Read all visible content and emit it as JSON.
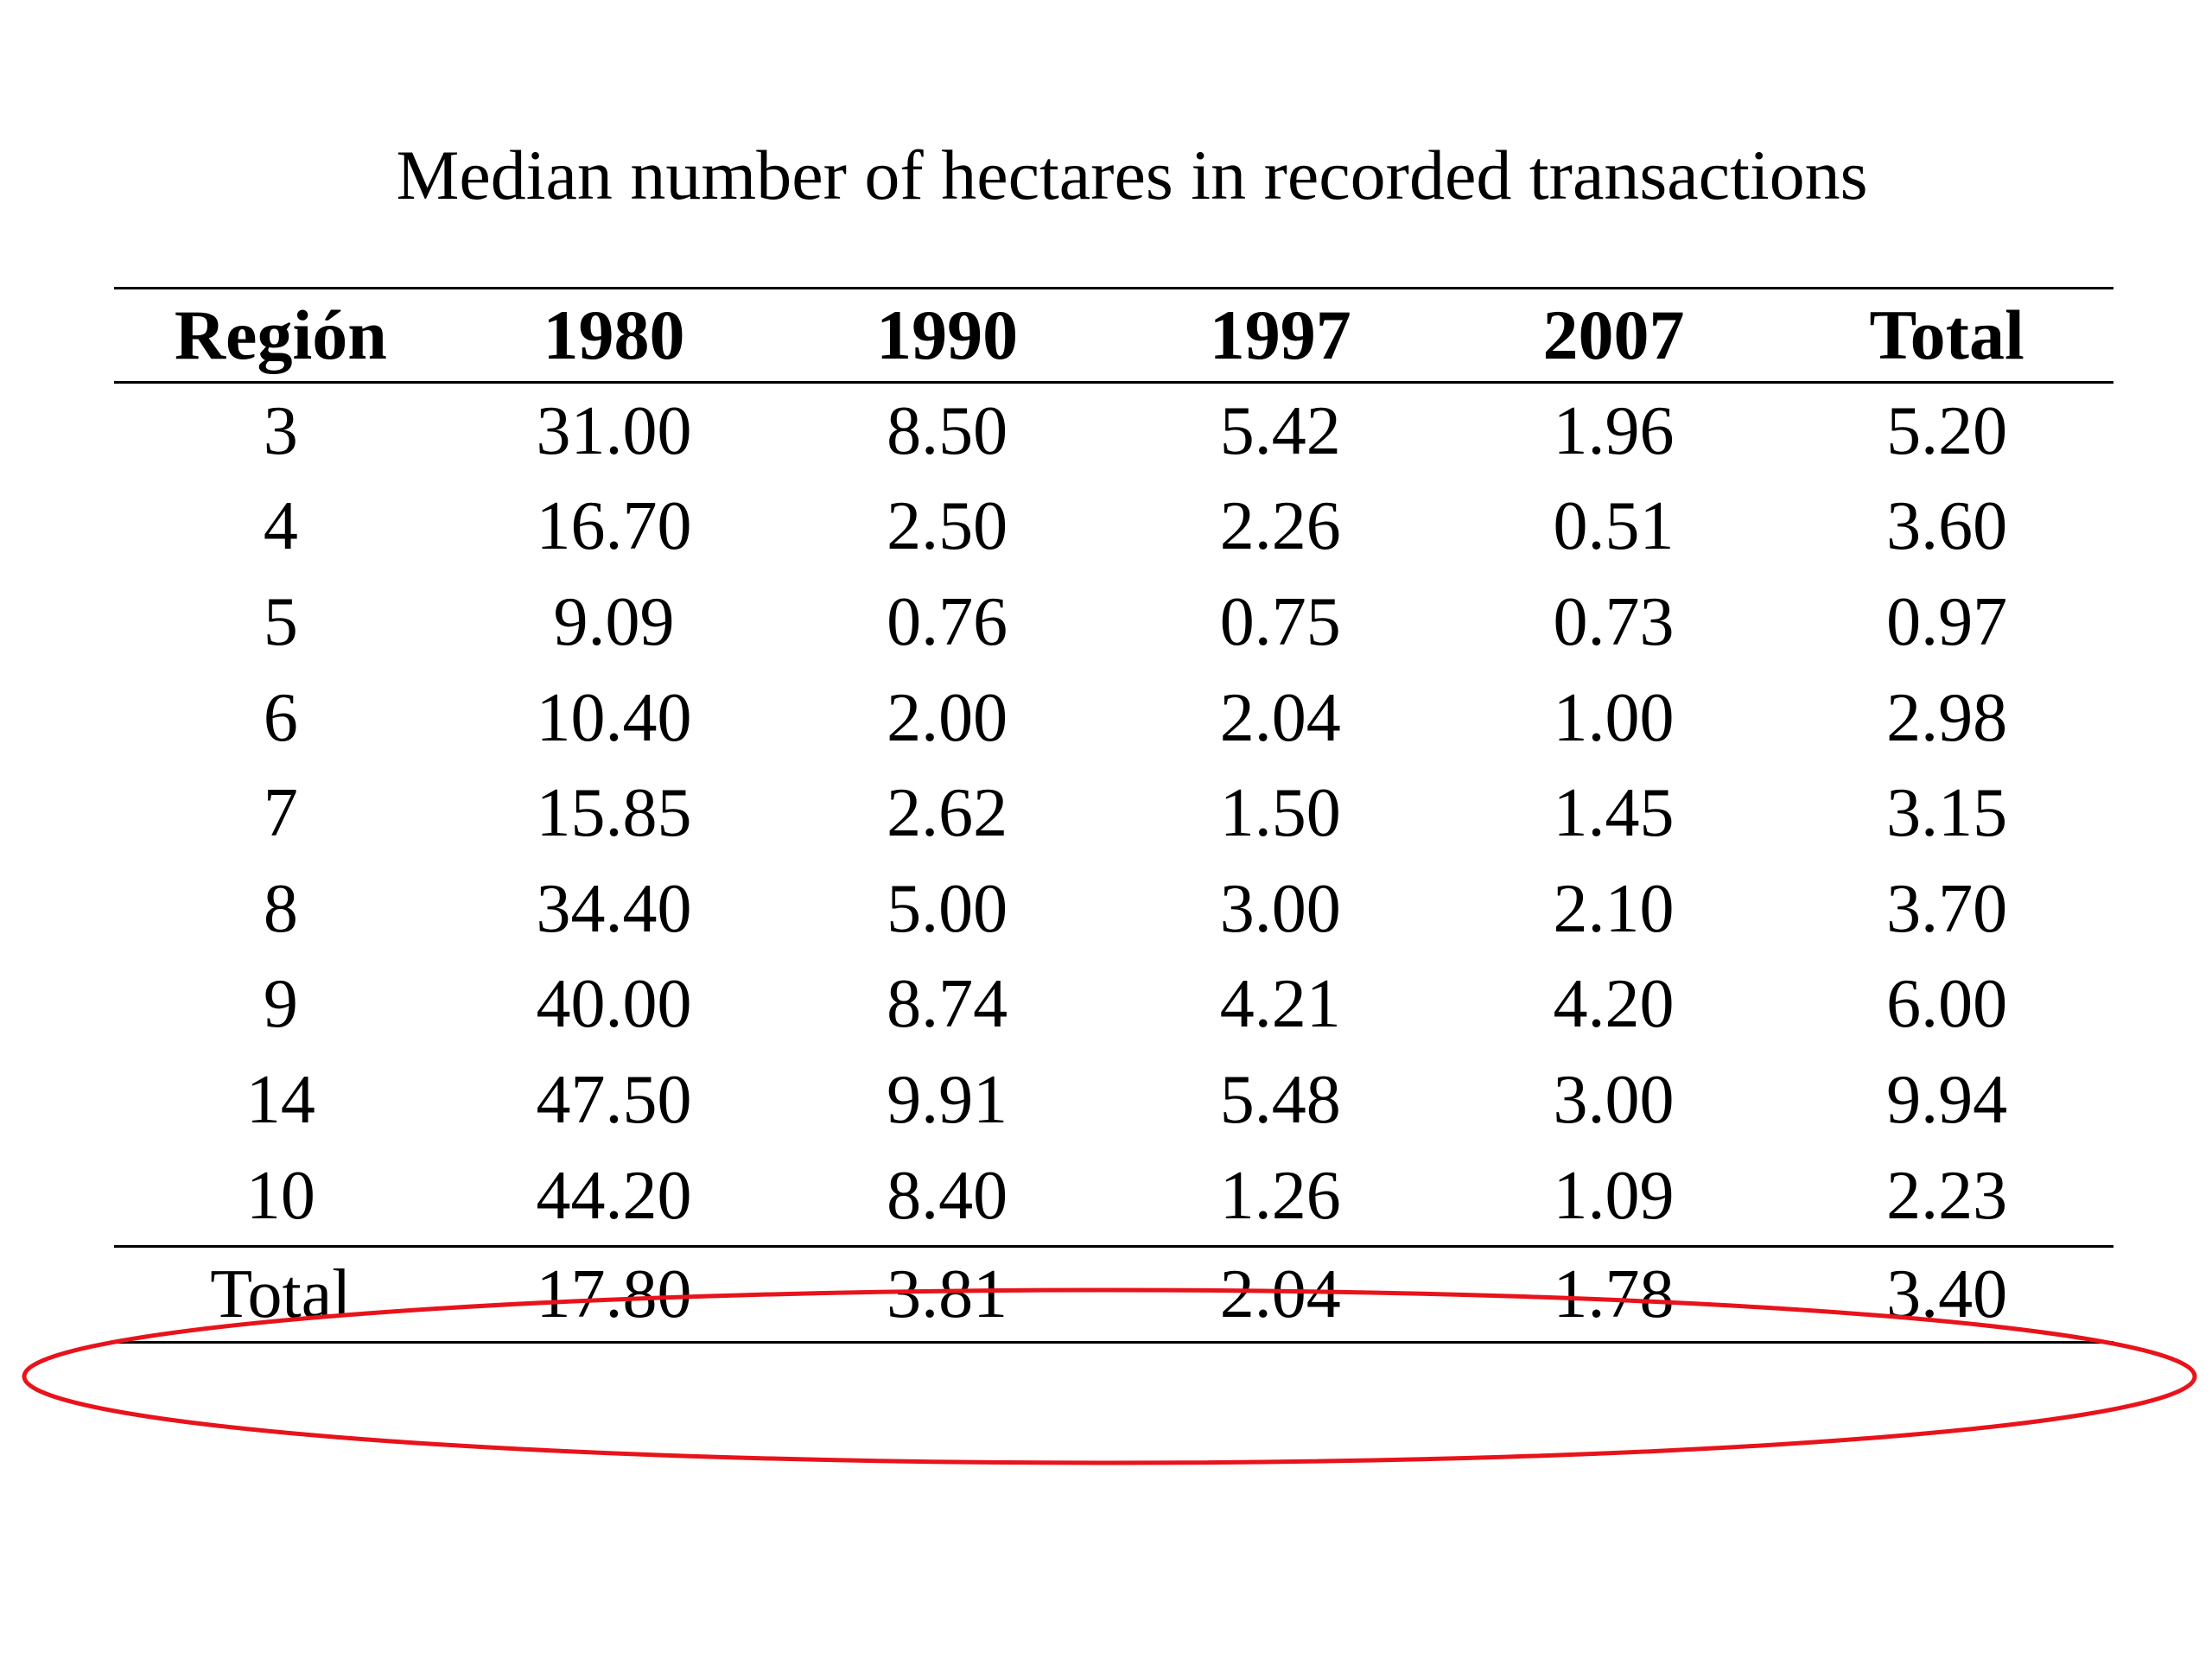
{
  "title": "Median number of hectares in recorded transactions",
  "table": {
    "headers": [
      "Región",
      "1980",
      "1990",
      "1997",
      "2007",
      "Total"
    ],
    "rows": [
      [
        "3",
        "31.00",
        "8.50",
        "5.42",
        "1.96",
        "5.20"
      ],
      [
        "4",
        "16.70",
        "2.50",
        "2.26",
        "0.51",
        "3.60"
      ],
      [
        "5",
        "9.09",
        "0.76",
        "0.75",
        "0.73",
        "0.97"
      ],
      [
        "6",
        "10.40",
        "2.00",
        "2.04",
        "1.00",
        "2.98"
      ],
      [
        "7",
        "15.85",
        "2.62",
        "1.50",
        "1.45",
        "3.15"
      ],
      [
        "8",
        "34.40",
        "5.00",
        "3.00",
        "2.10",
        "3.70"
      ],
      [
        "9",
        "40.00",
        "8.74",
        "4.21",
        "4.20",
        "6.00"
      ],
      [
        "14",
        "47.50",
        "9.91",
        "5.48",
        "3.00",
        "9.94"
      ],
      [
        "10",
        "44.20",
        "8.40",
        "1.26",
        "1.09",
        "2.23"
      ]
    ],
    "total_row": [
      "Total",
      "17.80",
      "3.81",
      "2.04",
      "1.78",
      "3.40"
    ]
  },
  "colors": {
    "annotation_stroke": "#e8131b",
    "text": "#000000",
    "background": "#ffffff"
  }
}
